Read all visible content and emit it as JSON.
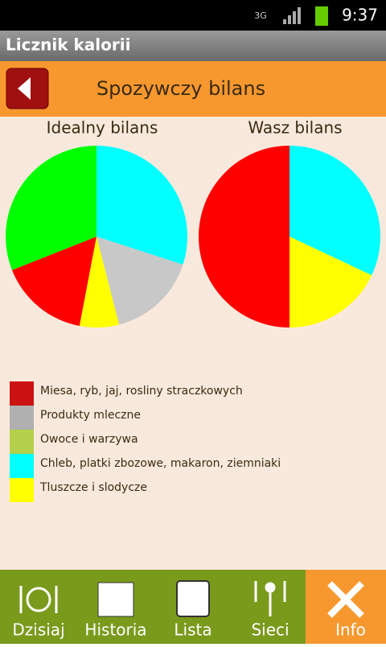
{
  "status_bar": {
    "network": "3G",
    "time": "9:37"
  },
  "app_title": "Licznik kalorii",
  "header": {
    "title": "Spozywczy bilans"
  },
  "chart_data": [
    {
      "type": "pie",
      "title": "Idealny bilans",
      "values": [
        30,
        16,
        7,
        16,
        31
      ],
      "colors": [
        "#00ffff",
        "#c8c8c8",
        "#ffff00",
        "#ff0000",
        "#00ff00"
      ]
    },
    {
      "type": "pie",
      "title": "Wasz bilans",
      "values": [
        32,
        18,
        50
      ],
      "colors": [
        "#00ffff",
        "#ffff00",
        "#ff0000"
      ]
    }
  ],
  "legend": {
    "items": [
      {
        "label": "Miesa, ryb, jaj, rosliny straczkowych",
        "color": "#cc1111"
      },
      {
        "label": "Produkty mleczne",
        "color": "#b0b0b0"
      },
      {
        "label": "Owoce i warzywa",
        "color": "#b5d04a"
      },
      {
        "label": "Chleb, platki zbozowe, makaron, ziemniaki",
        "color": "#00ffff"
      },
      {
        "label": "Tluszcze i slodycze",
        "color": "#ffff00"
      }
    ]
  },
  "tabs": [
    "Dzisiaj",
    "Historia",
    "Lista",
    "Sieci",
    "Info"
  ]
}
